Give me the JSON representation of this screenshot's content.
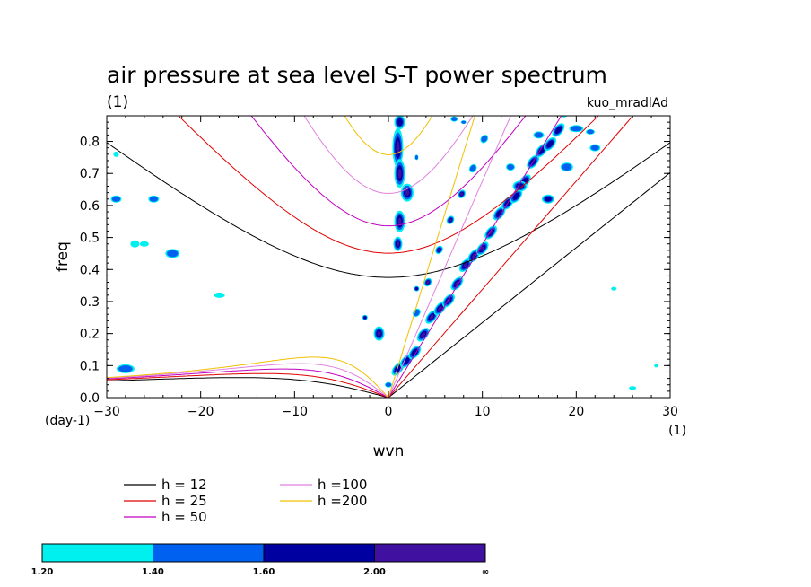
{
  "chart_data": {
    "type": "line",
    "title": "air pressure at sea level S-T power spectrum",
    "subtitle_left": "(1)",
    "subtitle_right": "kuo_mradlAd",
    "xlabel": "wvn",
    "ylabel": "freq",
    "x_unit": "(1)",
    "y_unit": "(day-1)",
    "xlim": [
      -30,
      30
    ],
    "ylim": [
      0,
      0.88
    ],
    "x_ticks": [
      -30,
      -20,
      -10,
      0,
      10,
      20,
      30
    ],
    "y_ticks": [
      0.0,
      0.1,
      0.2,
      0.3,
      0.4,
      0.5,
      0.6,
      0.7,
      0.8
    ],
    "series": [
      {
        "name": "h = 12",
        "color": "#000000"
      },
      {
        "name": "h = 25",
        "color": "#e00000"
      },
      {
        "name": "h = 50",
        "color": "#c000c0"
      },
      {
        "name": "h =100",
        "color": "#e080e0"
      },
      {
        "name": "h =200",
        "color": "#f0c000"
      }
    ],
    "shading_levels": [
      {
        "label": "1.20",
        "color": "#00f0f0"
      },
      {
        "label": "1.40",
        "color": "#0060f0"
      },
      {
        "label": "1.60",
        "color": "#0000a0"
      },
      {
        "label": "2.00",
        "color": "#4010a0"
      },
      {
        "label": "∞",
        "color": ""
      }
    ]
  }
}
